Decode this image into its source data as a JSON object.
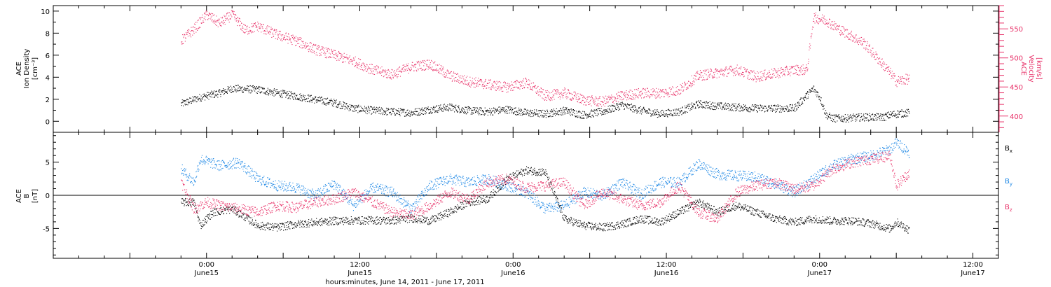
{
  "chart_data": [
    {
      "type": "scatter",
      "panel": "top",
      "ylabel_lines": [
        "ACE",
        "Ion Density",
        "[cm⁻³]"
      ],
      "y2label_lines": [
        "ACE",
        "Velocity",
        "[km/s]"
      ],
      "ylim": [
        -1,
        10.5
      ],
      "y_ticks": [
        "0",
        "2",
        "4",
        "6",
        "8",
        "10"
      ],
      "y2lim": [
        372,
        590
      ],
      "y2_ticks": [
        "400",
        "450",
        "500",
        "550"
      ],
      "y2_color": "#e8336a",
      "series": [
        {
          "color": "#000000",
          "axis": "left",
          "profile": [
            [
              0,
              1.6
            ],
            [
              3,
              2.2
            ],
            [
              6,
              2.6
            ],
            [
              8,
              3.0
            ],
            [
              12,
              2.9
            ],
            [
              15,
              2.6
            ],
            [
              18,
              2.3
            ],
            [
              21,
              2.0
            ],
            [
              24,
              1.7
            ],
            [
              27,
              1.2
            ],
            [
              30,
              1.0
            ],
            [
              33,
              0.9
            ],
            [
              36,
              0.8
            ],
            [
              39,
              1.1
            ],
            [
              42,
              1.3
            ],
            [
              45,
              1.0
            ],
            [
              48,
              0.9
            ],
            [
              51,
              1.1
            ],
            [
              54,
              0.8
            ],
            [
              57,
              0.7
            ],
            [
              60,
              1.0
            ],
            [
              63,
              0.6
            ],
            [
              66,
              0.9
            ],
            [
              69,
              1.5
            ],
            [
              72,
              1.0
            ],
            [
              75,
              0.7
            ],
            [
              78,
              0.9
            ],
            [
              81,
              1.6
            ],
            [
              84,
              1.4
            ],
            [
              87,
              1.3
            ],
            [
              90,
              1.2
            ],
            [
              93,
              1.2
            ],
            [
              96,
              1.2
            ],
            [
              98,
              2.4
            ],
            [
              99,
              3.0
            ],
            [
              100,
              2.2
            ],
            [
              101,
              0.6
            ],
            [
              102,
              0.3
            ],
            [
              104,
              0.3
            ],
            [
              107,
              0.4
            ],
            [
              110,
              0.4
            ],
            [
              111,
              0.6
            ],
            [
              112,
              0.7
            ],
            [
              114,
              0.8
            ]
          ]
        },
        {
          "color": "#e8336a",
          "axis": "right",
          "profile": [
            [
              0,
              530
            ],
            [
              2,
              550
            ],
            [
              4,
              575
            ],
            [
              6,
              560
            ],
            [
              8,
              575
            ],
            [
              10,
              548
            ],
            [
              12,
              555
            ],
            [
              15,
              540
            ],
            [
              18,
              530
            ],
            [
              21,
              515
            ],
            [
              24,
              505
            ],
            [
              27,
              495
            ],
            [
              30,
              480
            ],
            [
              33,
              472
            ],
            [
              36,
              485
            ],
            [
              39,
              490
            ],
            [
              42,
              470
            ],
            [
              45,
              460
            ],
            [
              48,
              455
            ],
            [
              51,
              450
            ],
            [
              54,
              458
            ],
            [
              57,
              435
            ],
            [
              60,
              440
            ],
            [
              63,
              428
            ],
            [
              66,
              425
            ],
            [
              69,
              435
            ],
            [
              72,
              440
            ],
            [
              75,
              440
            ],
            [
              78,
              445
            ],
            [
              81,
              470
            ],
            [
              84,
              475
            ],
            [
              87,
              480
            ],
            [
              90,
              468
            ],
            [
              93,
              474
            ],
            [
              96,
              480
            ],
            [
              98,
              480
            ],
            [
              99,
              570
            ],
            [
              101,
              565
            ],
            [
              103,
              550
            ],
            [
              105,
              538
            ],
            [
              107,
              525
            ],
            [
              109,
              500
            ],
            [
              111,
              475
            ],
            [
              112,
              460
            ],
            [
              114,
              465
            ]
          ]
        }
      ]
    },
    {
      "type": "scatter",
      "panel": "bottom",
      "ylabel_lines": [
        "ACE",
        "B",
        "[nT]"
      ],
      "ylim": [
        -9.5,
        9.5
      ],
      "y_ticks": [
        "-5",
        "0",
        "5"
      ],
      "legend_position": "right",
      "series": [
        {
          "name": "B",
          "subscript": "x",
          "color": "#000000",
          "profile": [
            [
              0,
              -1
            ],
            [
              2,
              -1
            ],
            [
              3,
              -4.5
            ],
            [
              5,
              -2.5
            ],
            [
              8,
              -2
            ],
            [
              12,
              -4.5
            ],
            [
              15,
              -4.8
            ],
            [
              18,
              -4.3
            ],
            [
              24,
              -3.8
            ],
            [
              30,
              -3.7
            ],
            [
              33,
              -3.8
            ],
            [
              36,
              -3.4
            ],
            [
              39,
              -3.8
            ],
            [
              42,
              -2.5
            ],
            [
              45,
              -1
            ],
            [
              48,
              -0.5
            ],
            [
              51,
              2.5
            ],
            [
              54,
              3.8
            ],
            [
              57,
              3.5
            ],
            [
              60,
              -3.5
            ],
            [
              63,
              -4.5
            ],
            [
              66,
              -4.8
            ],
            [
              69,
              -4.3
            ],
            [
              72,
              -3.5
            ],
            [
              75,
              -4
            ],
            [
              78,
              -2.5
            ],
            [
              81,
              -1
            ],
            [
              84,
              -2.5
            ],
            [
              87,
              -1.5
            ],
            [
              90,
              -2.5
            ],
            [
              93,
              -3.5
            ],
            [
              96,
              -4
            ],
            [
              99,
              -3.5
            ],
            [
              102,
              -3.8
            ],
            [
              105,
              -3.8
            ],
            [
              108,
              -4.2
            ],
            [
              111,
              -5
            ],
            [
              112,
              -4
            ],
            [
              114,
              -5.2
            ]
          ]
        },
        {
          "name": "B",
          "subscript": "y",
          "color": "#1e88e5",
          "profile": [
            [
              0,
              4
            ],
            [
              2,
              2
            ],
            [
              3,
              5.5
            ],
            [
              6,
              4.5
            ],
            [
              9,
              5
            ],
            [
              12,
              2.5
            ],
            [
              15,
              1.5
            ],
            [
              18,
              1.2
            ],
            [
              21,
              0
            ],
            [
              24,
              1.8
            ],
            [
              27,
              -1.5
            ],
            [
              30,
              1.2
            ],
            [
              33,
              0.5
            ],
            [
              36,
              -2
            ],
            [
              39,
              1.5
            ],
            [
              42,
              2.5
            ],
            [
              45,
              2
            ],
            [
              48,
              2.5
            ],
            [
              51,
              1.5
            ],
            [
              54,
              0.5
            ],
            [
              57,
              -2
            ],
            [
              60,
              -1.5
            ],
            [
              63,
              0.5
            ],
            [
              66,
              0
            ],
            [
              69,
              2
            ],
            [
              72,
              0.2
            ],
            [
              75,
              2
            ],
            [
              78,
              2
            ],
            [
              81,
              4.8
            ],
            [
              84,
              3.2
            ],
            [
              87,
              3
            ],
            [
              90,
              2.8
            ],
            [
              93,
              1.8
            ],
            [
              96,
              0.5
            ],
            [
              99,
              2.5
            ],
            [
              102,
              4.5
            ],
            [
              105,
              5.5
            ],
            [
              108,
              6
            ],
            [
              111,
              7
            ],
            [
              112,
              8
            ],
            [
              114,
              6.5
            ]
          ]
        },
        {
          "name": "B",
          "subscript": "z",
          "color": "#e8336a",
          "profile": [
            [
              0,
              2
            ],
            [
              2,
              -2
            ],
            [
              4,
              -1
            ],
            [
              6,
              -1.5
            ],
            [
              9,
              -2
            ],
            [
              12,
              -2.5
            ],
            [
              15,
              -1.5
            ],
            [
              18,
              -1.8
            ],
            [
              21,
              -1
            ],
            [
              24,
              -0.5
            ],
            [
              27,
              0.5
            ],
            [
              30,
              -1
            ],
            [
              33,
              -2.5
            ],
            [
              36,
              -3
            ],
            [
              39,
              -1.5
            ],
            [
              42,
              0.5
            ],
            [
              45,
              -0.5
            ],
            [
              48,
              2
            ],
            [
              51,
              2.5
            ],
            [
              54,
              1.2
            ],
            [
              57,
              1.5
            ],
            [
              60,
              2
            ],
            [
              63,
              -1.5
            ],
            [
              66,
              0.5
            ],
            [
              69,
              -0.5
            ],
            [
              72,
              -1.5
            ],
            [
              75,
              -1
            ],
            [
              78,
              1.5
            ],
            [
              81,
              -2.5
            ],
            [
              84,
              -3.5
            ],
            [
              87,
              0.5
            ],
            [
              90,
              1.5
            ],
            [
              93,
              2
            ],
            [
              96,
              1
            ],
            [
              99,
              1.5
            ],
            [
              102,
              4
            ],
            [
              105,
              5
            ],
            [
              108,
              5.5
            ],
            [
              111,
              6
            ],
            [
              112,
              1.5
            ],
            [
              114,
              3.5
            ]
          ]
        }
      ]
    }
  ],
  "x_axis": {
    "xlabel": "hours:minutes, June 14, 2011 - June 17, 2011",
    "xlim_hours": [
      -20,
      128
    ],
    "ticks": [
      {
        "hour": 4,
        "label": "0:00",
        "sublabel": "June15"
      },
      {
        "hour": 28,
        "label": "12:00",
        "sublabel": "June15"
      },
      {
        "hour": 52,
        "label": "0:00",
        "sublabel": "June16"
      },
      {
        "hour": 76,
        "label": "12:00",
        "sublabel": "June16"
      },
      {
        "hour": 100,
        "label": "0:00",
        "sublabel": "June17"
      },
      {
        "hour": 124,
        "label": "12:00",
        "sublabel": "June17"
      }
    ]
  }
}
